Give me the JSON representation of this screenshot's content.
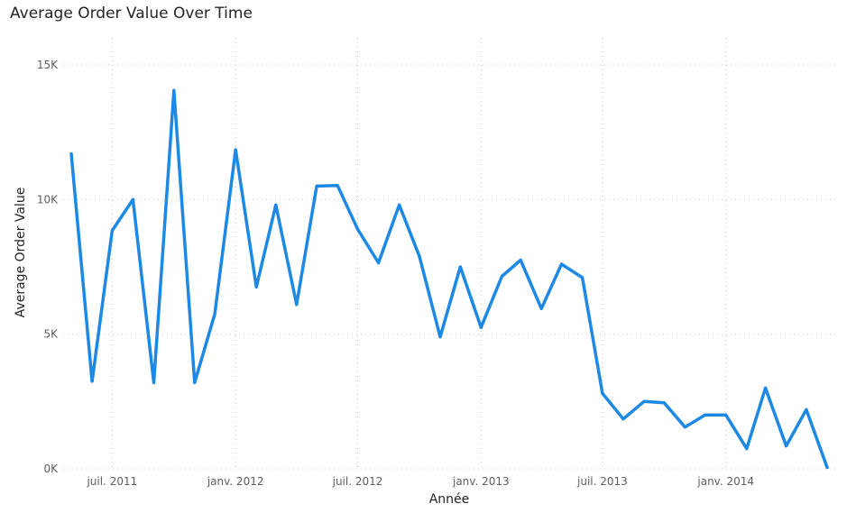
{
  "chart_data": {
    "type": "line",
    "title": "Average Order Value Over Time",
    "xlabel": "Année",
    "ylabel": "Average Order Value",
    "ylim": [
      0,
      15000
    ],
    "yticks": [
      {
        "value": 0,
        "label": "0K"
      },
      {
        "value": 5000,
        "label": "5K"
      },
      {
        "value": 10000,
        "label": "10K"
      },
      {
        "value": 15000,
        "label": "15K"
      }
    ],
    "xticks": [
      {
        "date": "2011-07-01",
        "label": "juil. 2011"
      },
      {
        "date": "2012-01-01",
        "label": "janv. 2012"
      },
      {
        "date": "2012-07-01",
        "label": "juil. 2012"
      },
      {
        "date": "2013-01-01",
        "label": "janv. 2013"
      },
      {
        "date": "2013-07-01",
        "label": "juil. 2013"
      },
      {
        "date": "2014-01-01",
        "label": "janv. 2014"
      }
    ],
    "xlim": [
      "2011-05-01",
      "2014-06-01"
    ],
    "grid": true,
    "series": [
      {
        "color": "#1e88e5",
        "points": [
          {
            "x": "2011-05-01",
            "y": 11700
          },
          {
            "x": "2011-06-01",
            "y": 3250
          },
          {
            "x": "2011-07-01",
            "y": 8850
          },
          {
            "x": "2011-08-01",
            "y": 10000
          },
          {
            "x": "2011-09-01",
            "y": 3200
          },
          {
            "x": "2011-10-01",
            "y": 14050
          },
          {
            "x": "2011-11-01",
            "y": 3200
          },
          {
            "x": "2011-12-01",
            "y": 5750
          },
          {
            "x": "2012-01-01",
            "y": 11850
          },
          {
            "x": "2012-02-01",
            "y": 6750
          },
          {
            "x": "2012-03-01",
            "y": 9800
          },
          {
            "x": "2012-04-01",
            "y": 6100
          },
          {
            "x": "2012-05-01",
            "y": 10500
          },
          {
            "x": "2012-06-01",
            "y": 10520
          },
          {
            "x": "2012-07-01",
            "y": 8900
          },
          {
            "x": "2012-08-01",
            "y": 7650
          },
          {
            "x": "2012-09-01",
            "y": 9800
          },
          {
            "x": "2012-10-01",
            "y": 7900
          },
          {
            "x": "2012-11-01",
            "y": 4900
          },
          {
            "x": "2012-12-01",
            "y": 7500
          },
          {
            "x": "2013-01-01",
            "y": 5250
          },
          {
            "x": "2013-02-01",
            "y": 7150
          },
          {
            "x": "2013-03-01",
            "y": 7750
          },
          {
            "x": "2013-04-01",
            "y": 5950
          },
          {
            "x": "2013-05-01",
            "y": 7600
          },
          {
            "x": "2013-06-01",
            "y": 7100
          },
          {
            "x": "2013-07-01",
            "y": 2800
          },
          {
            "x": "2013-08-01",
            "y": 1850
          },
          {
            "x": "2013-09-01",
            "y": 2500
          },
          {
            "x": "2013-10-01",
            "y": 2450
          },
          {
            "x": "2013-11-01",
            "y": 1550
          },
          {
            "x": "2013-12-01",
            "y": 2000
          },
          {
            "x": "2014-01-01",
            "y": 2000
          },
          {
            "x": "2014-02-01",
            "y": 750
          },
          {
            "x": "2014-03-01",
            "y": 3000
          },
          {
            "x": "2014-04-01",
            "y": 850
          },
          {
            "x": "2014-05-01",
            "y": 2200
          },
          {
            "x": "2014-06-01",
            "y": 50
          }
        ]
      }
    ]
  }
}
